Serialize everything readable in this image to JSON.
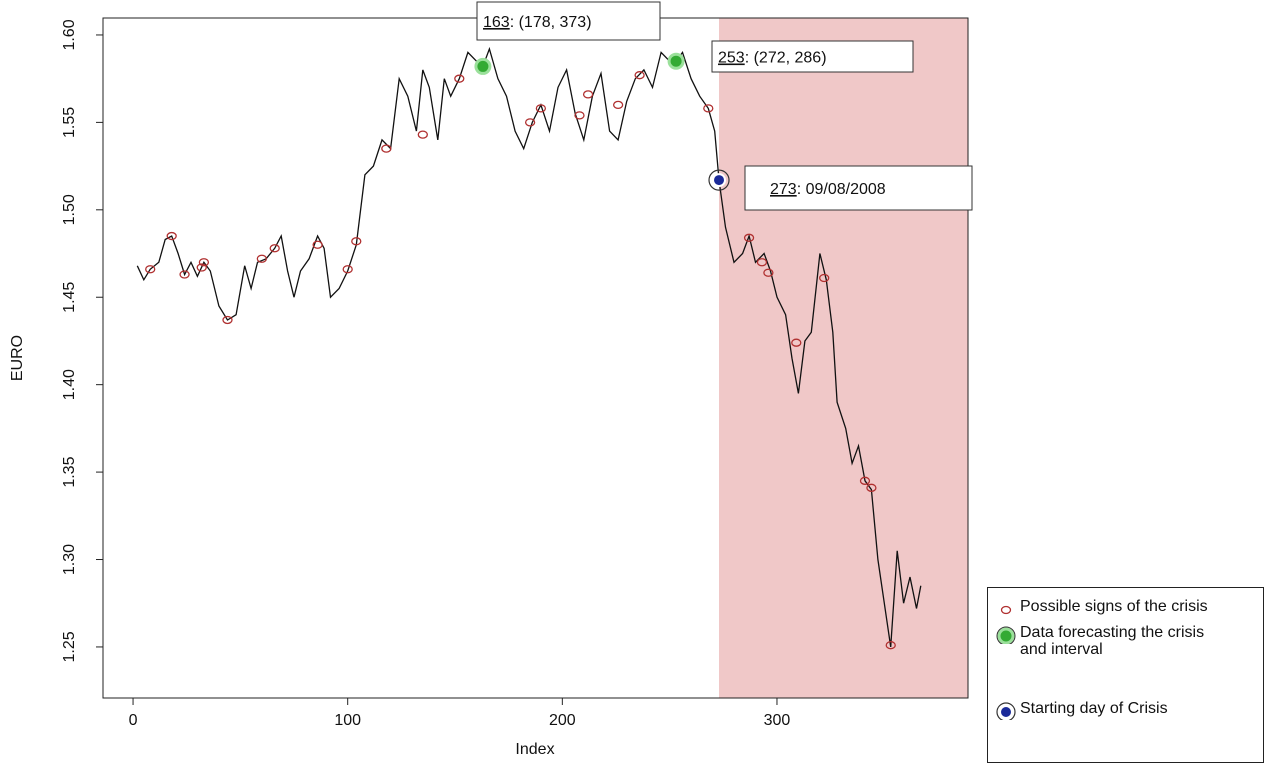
{
  "chart_data": {
    "type": "line",
    "xlabel": "Index",
    "ylabel": "EURO",
    "xlim": [
      -14,
      389
    ],
    "ylim": [
      1.2208,
      1.6097
    ],
    "xticks": [
      0,
      100,
      200,
      300
    ],
    "yticks": [
      1.25,
      {
        "value": 1.3,
        "label": "1.30"
      },
      1.35,
      {
        "value": 1.4,
        "label": "1.40"
      },
      1.45,
      {
        "value": 1.5,
        "label": "1.50"
      },
      1.55,
      {
        "value": 1.6,
        "label": "1.60"
      }
    ],
    "shade_from": 273,
    "shade_color": "#f0c8c8",
    "line": {
      "color": "#111111",
      "x": [
        2,
        5,
        8,
        12,
        15,
        18,
        21,
        24,
        27,
        30,
        33,
        36,
        40,
        44,
        48,
        52,
        55,
        58,
        62,
        66,
        69,
        72,
        75,
        78,
        82,
        86,
        89,
        92,
        96,
        100,
        104,
        108,
        112,
        116,
        120,
        124,
        128,
        132,
        135,
        138,
        142,
        145,
        148,
        152,
        156,
        160,
        163,
        166,
        170,
        174,
        178,
        182,
        186,
        190,
        194,
        198,
        202,
        206,
        210,
        214,
        218,
        222,
        226,
        230,
        234,
        238,
        242,
        246,
        250,
        253,
        256,
        260,
        264,
        268,
        271,
        273,
        276,
        280,
        284,
        287,
        290,
        294,
        297,
        300,
        304,
        307,
        310,
        313,
        316,
        320,
        323,
        326,
        328,
        332,
        335,
        338,
        341,
        344,
        347,
        350,
        353,
        356,
        359,
        362,
        365,
        367
      ],
      "values": [
        1.468,
        1.46,
        1.466,
        1.47,
        1.483,
        1.485,
        1.475,
        1.463,
        1.47,
        1.462,
        1.47,
        1.465,
        1.445,
        1.437,
        1.44,
        1.468,
        1.455,
        1.47,
        1.472,
        1.478,
        1.485,
        1.465,
        1.45,
        1.465,
        1.472,
        1.485,
        1.478,
        1.45,
        1.455,
        1.465,
        1.48,
        1.52,
        1.525,
        1.54,
        1.535,
        1.575,
        1.565,
        1.545,
        1.58,
        1.57,
        1.54,
        1.575,
        1.565,
        1.575,
        1.59,
        1.585,
        1.582,
        1.592,
        1.575,
        1.565,
        1.545,
        1.535,
        1.55,
        1.56,
        1.545,
        1.57,
        1.58,
        1.555,
        1.54,
        1.565,
        1.578,
        1.545,
        1.54,
        1.562,
        1.575,
        1.58,
        1.57,
        1.59,
        1.585,
        1.585,
        1.59,
        1.575,
        1.565,
        1.558,
        1.545,
        1.517,
        1.49,
        1.47,
        1.475,
        1.485,
        1.47,
        1.475,
        1.465,
        1.45,
        1.44,
        1.415,
        1.395,
        1.425,
        1.43,
        1.475,
        1.46,
        1.43,
        1.39,
        1.375,
        1.355,
        1.365,
        1.345,
        1.34,
        1.3,
        1.275,
        1.25,
        1.305,
        1.275,
        1.29,
        1.272,
        1.285
      ]
    },
    "markers": [
      {
        "name": "Possible signs of the crisis",
        "color": "#b03030",
        "x": [
          8,
          18,
          24,
          32,
          33,
          44,
          60,
          66,
          86,
          100,
          104,
          118,
          135,
          152,
          185,
          190,
          208,
          212,
          226,
          236,
          268,
          287,
          293,
          296,
          309,
          322,
          341,
          344,
          353
        ],
        "values": [
          1.466,
          1.485,
          1.463,
          1.467,
          1.47,
          1.437,
          1.472,
          1.478,
          1.48,
          1.466,
          1.482,
          1.535,
          1.543,
          1.575,
          1.55,
          1.558,
          1.554,
          1.566,
          1.56,
          1.577,
          1.558,
          1.484,
          1.47,
          1.464,
          1.424,
          1.461,
          1.345,
          1.341,
          1.251
        ]
      },
      {
        "name": "Data forecasting the crisis and interval",
        "color": "#33aa33",
        "x": [
          163,
          253
        ],
        "values": [
          1.582,
          1.585
        ]
      },
      {
        "name": "Starting day of Crisis",
        "color": "#1a2a99",
        "x": [
          273
        ],
        "values": [
          1.517
        ]
      }
    ],
    "annotations": [
      {
        "label": "163",
        "text": ": (178, 373)"
      },
      {
        "label": "253",
        "text": ": (272, 286)"
      },
      {
        "label": "273",
        "text": ": 09/08/2008"
      }
    ]
  }
}
